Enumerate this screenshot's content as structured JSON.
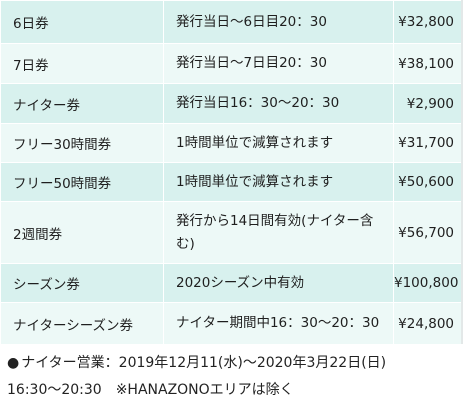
{
  "tickets": [
    {
      "name": "6日券",
      "description": "発行当日〜6日目20：30",
      "price": "¥32,800"
    },
    {
      "name": "7日券",
      "description": "発行当日〜7日目20：30",
      "price": "¥38,100"
    },
    {
      "name": "ナイター券",
      "description": "発行当日16：30〜20：30",
      "price": "¥2,900"
    },
    {
      "name": "フリー30時間券",
      "description": "1時間単位で減算されます",
      "price": "¥31,700"
    },
    {
      "name": "フリー50時間券",
      "description": "1時間単位で減算されます",
      "price": "¥50,600"
    },
    {
      "name": "2週間券",
      "description": "発行から14日間有効(ナイター含む)",
      "price": "¥56,700"
    },
    {
      "name": "シーズン券",
      "description": "2020シーズン中有効",
      "price": "¥100,800"
    },
    {
      "name": "ナイターシーズン券",
      "description": "ナイター期間中16：30〜20：30",
      "price": "¥24,800"
    }
  ],
  "notes": {
    "bullet": "●",
    "line1": "ナイター営業：2019年12月11(水)〜2020年3月22日(日)",
    "line2": "16:30〜20:30　※HANAZONOエリアは除く"
  },
  "colors": {
    "row_dark": "#d8f1ee",
    "row_light": "#edf9f7"
  }
}
